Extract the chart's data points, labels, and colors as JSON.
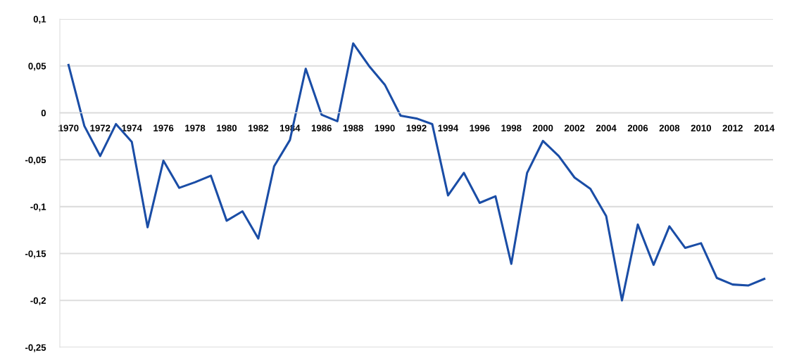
{
  "chart_data": {
    "type": "line",
    "categories": [
      "1970",
      null,
      "1972",
      null,
      "1974",
      null,
      "1976",
      null,
      "1978",
      null,
      "1980",
      null,
      "1982",
      null,
      "1984",
      null,
      "1986",
      null,
      "1988",
      null,
      "1990",
      null,
      "1992",
      null,
      "1994",
      null,
      "1996",
      null,
      "1998",
      null,
      "2000",
      null,
      "2002",
      null,
      "2004",
      null,
      "2006",
      null,
      "2008",
      null,
      "2010",
      null,
      "2012",
      null,
      "2014"
    ],
    "series": [
      {
        "color": "#1a4da6",
        "values": [
          0.051,
          -0.014,
          -0.046,
          -0.012,
          -0.031,
          -0.122,
          -0.051,
          -0.08,
          -0.074,
          -0.067,
          -0.115,
          -0.105,
          -0.134,
          -0.057,
          -0.029,
          0.047,
          -0.002,
          -0.009,
          0.074,
          0.05,
          0.03,
          -0.003,
          -0.006,
          -0.012,
          -0.088,
          -0.064,
          -0.096,
          -0.089,
          -0.161,
          -0.064,
          -0.03,
          -0.046,
          -0.069,
          -0.081,
          -0.11,
          -0.2,
          -0.119,
          -0.162,
          -0.121,
          -0.144,
          -0.139,
          -0.176,
          -0.183,
          -0.184,
          -0.177
        ]
      }
    ],
    "ylim": [
      -0.25,
      0.1
    ],
    "yticks": [
      {
        "value": 0.1,
        "label": "0,1"
      },
      {
        "value": 0.05,
        "label": "0,05"
      },
      {
        "value": 0,
        "label": "0"
      },
      {
        "value": -0.05,
        "label": "-0,05"
      },
      {
        "value": -0.1,
        "label": "-0,1"
      },
      {
        "value": -0.15,
        "label": "-0,15"
      },
      {
        "value": -0.2,
        "label": "-0,2"
      },
      {
        "value": -0.25,
        "label": "-0,25"
      }
    ],
    "grid": "y",
    "marker": "none",
    "line_style": "solid",
    "legend": false
  }
}
